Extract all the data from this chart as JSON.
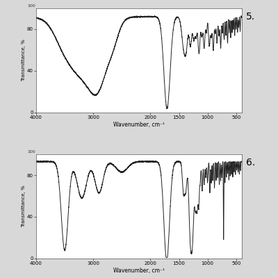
{
  "chart1_label": "5.",
  "chart2_label": "6.",
  "xlabel": "Wavenumber, cm⁻¹",
  "ylabel": "Transmittance, %",
  "bg_color": "#d8d8d8",
  "plot_bg": "#ffffff",
  "line_color": "#222222",
  "line_width": 0.7,
  "fig_width": 4.0,
  "fig_height": 4.0,
  "dpi": 100
}
